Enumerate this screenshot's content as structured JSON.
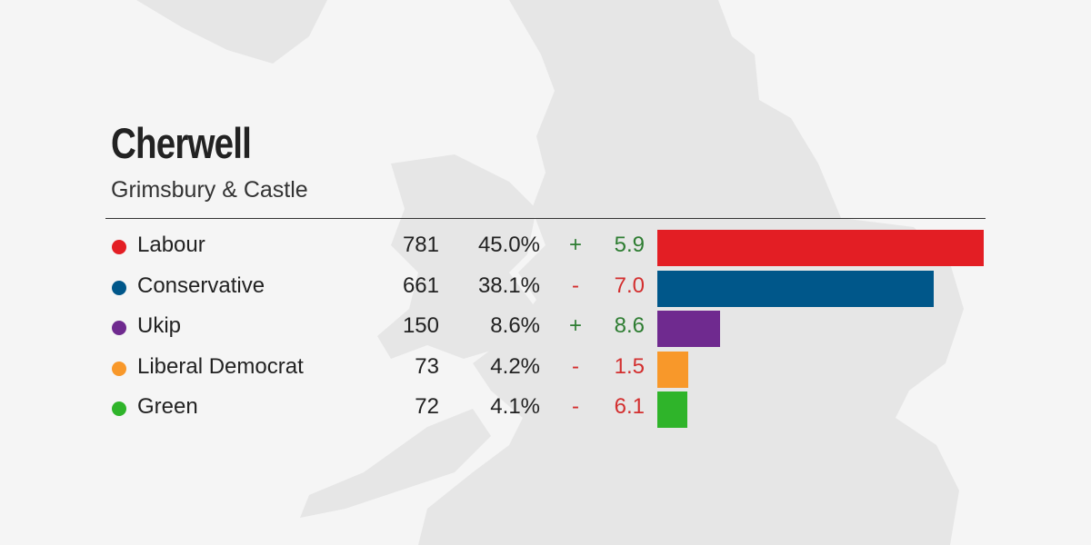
{
  "header": {
    "title": "Cherwell",
    "subtitle": "Grimsbury & Castle"
  },
  "colors": {
    "positive": "#2e7d32",
    "negative": "#d32f2f",
    "rule": "#333333",
    "map_land": "#e6e6e6",
    "background": "#f5f5f5"
  },
  "chart_data": {
    "type": "bar",
    "orientation": "horizontal",
    "title": "Cherwell",
    "subtitle": "Grimsbury & Castle",
    "categories": [
      "Labour",
      "Conservative",
      "Ukip",
      "Liberal Democrat",
      "Green"
    ],
    "values": [
      781,
      661,
      150,
      73,
      72
    ],
    "rows": [
      {
        "party": "Labour",
        "votes": "781",
        "votes_value": 781,
        "percent": "45.0%",
        "sign": "+",
        "change": "5.9",
        "change_value": 5.9,
        "color": "#e31e24"
      },
      {
        "party": "Conservative",
        "votes": "661",
        "votes_value": 661,
        "percent": "38.1%",
        "sign": "-",
        "change": "7.0",
        "change_value": -7.0,
        "color": "#00578a"
      },
      {
        "party": "Ukip",
        "votes": "150",
        "votes_value": 150,
        "percent": "8.6%",
        "sign": "+",
        "change": "8.6",
        "change_value": 8.6,
        "color": "#6f2a8f"
      },
      {
        "party": "Liberal Democrat",
        "votes": "73",
        "votes_value": 73,
        "percent": "4.2%",
        "sign": "-",
        "change": "1.5",
        "change_value": -1.5,
        "color": "#f8982a"
      },
      {
        "party": "Green",
        "votes": "72",
        "votes_value": 72,
        "percent": "4.1%",
        "sign": "-",
        "change": "6.1",
        "change_value": -6.1,
        "color": "#2fb42a"
      }
    ],
    "xlim": [
      0,
      781
    ],
    "grid": false,
    "legend": "none"
  }
}
